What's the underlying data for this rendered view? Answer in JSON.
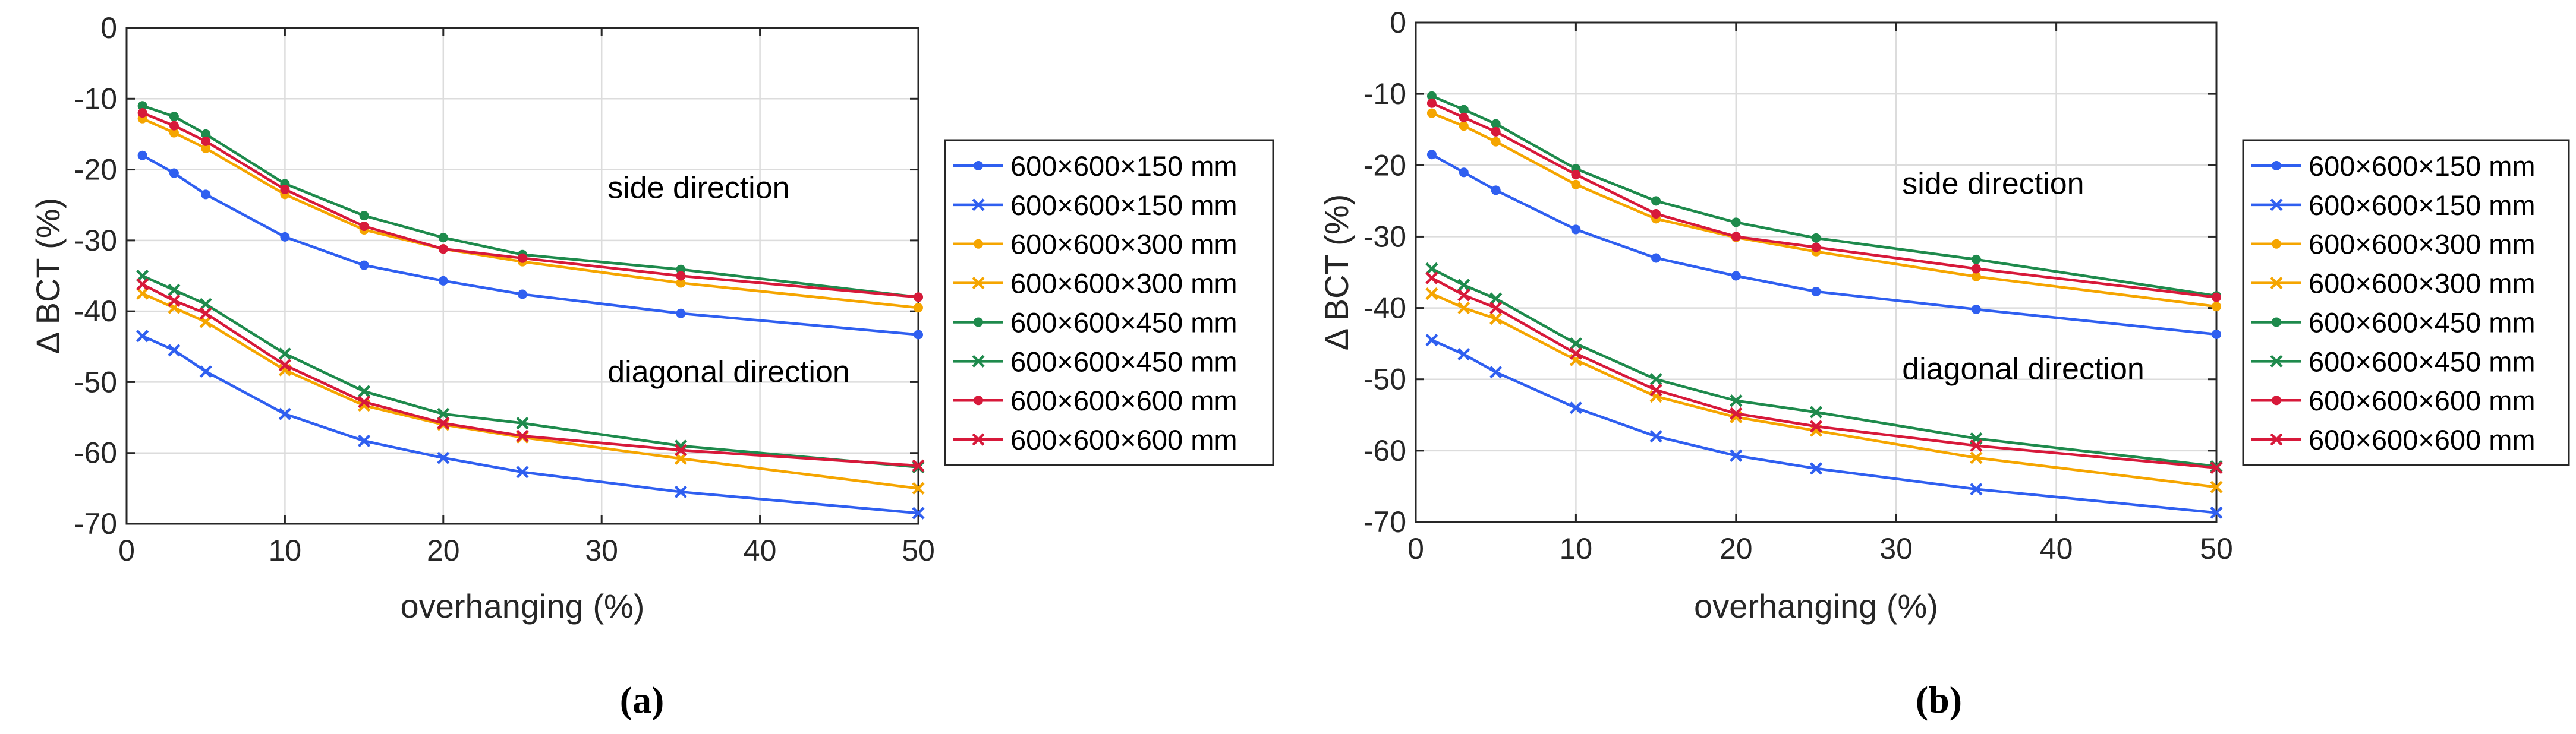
{
  "colors": {
    "blue": "#2f5ff0",
    "orange": "#f5a500",
    "green": "#1e8a4c",
    "red": "#d7193a",
    "grid": "#dcdcdc",
    "axis": "#262626"
  },
  "chart_data": [
    {
      "panel": "a",
      "caption": "(a)",
      "type": "line",
      "xlabel": "overhanging (%)",
      "ylabel": "Δ BCT (%)",
      "xlim": [
        0,
        50
      ],
      "ylim": [
        -70,
        0
      ],
      "xticks": [
        "0",
        "10",
        "20",
        "30",
        "40",
        "50"
      ],
      "yticks": [
        "0",
        "-10",
        "-20",
        "-30",
        "-40",
        "-50",
        "-60",
        "-70"
      ],
      "grid": true,
      "legend_position": "outside-right",
      "annotations": [
        {
          "text": "side direction",
          "x": 30,
          "y": -24
        },
        {
          "text": "diagonal direction",
          "x": 30,
          "y": -50
        }
      ],
      "x": [
        1,
        3,
        5,
        10,
        15,
        20,
        25,
        35,
        50
      ],
      "series": [
        {
          "name": "600×600×150 mm",
          "color": "blue",
          "marker": "dot",
          "values": [
            -18,
            -20.5,
            -23.5,
            -29.5,
            -33.5,
            -35.7,
            -37.6,
            -40.3,
            -43.3
          ]
        },
        {
          "name": "600×600×150 mm",
          "color": "blue",
          "marker": "x",
          "values": [
            -43.5,
            -45.5,
            -48.5,
            -54.5,
            -58.3,
            -60.7,
            -62.7,
            -65.5,
            -68.5
          ]
        },
        {
          "name": "600×600×300 mm",
          "color": "orange",
          "marker": "dot",
          "values": [
            -12.8,
            -14.8,
            -17,
            -23.5,
            -28.5,
            -31.2,
            -33,
            -36,
            -39.5
          ]
        },
        {
          "name": "600×600×300 mm",
          "color": "orange",
          "marker": "x",
          "values": [
            -37.5,
            -39.5,
            -41.5,
            -48.3,
            -53.3,
            -56,
            -57.8,
            -60.8,
            -65
          ]
        },
        {
          "name": "600×600×450 mm",
          "color": "green",
          "marker": "dot",
          "values": [
            -11,
            -12.5,
            -15,
            -22,
            -26.5,
            -29.6,
            -32,
            -34.1,
            -38
          ]
        },
        {
          "name": "600×600×450 mm",
          "color": "green",
          "marker": "x",
          "values": [
            -35,
            -37,
            -39,
            -46,
            -51.3,
            -54.5,
            -55.8,
            -59,
            -62
          ]
        },
        {
          "name": "600×600×600 mm",
          "color": "red",
          "marker": "dot",
          "values": [
            -12,
            -13.8,
            -16,
            -22.8,
            -28,
            -31.2,
            -32.5,
            -35,
            -38
          ]
        },
        {
          "name": "600×600×600 mm",
          "color": "red",
          "marker": "x",
          "values": [
            -36.2,
            -38.5,
            -40.3,
            -47.6,
            -52.8,
            -55.8,
            -57.6,
            -59.6,
            -61.8
          ]
        }
      ]
    },
    {
      "panel": "b",
      "caption": "(b)",
      "type": "line",
      "xlabel": "overhanging (%)",
      "ylabel": "Δ BCT (%)",
      "xlim": [
        0,
        50
      ],
      "ylim": [
        -70,
        0
      ],
      "xticks": [
        "0",
        "10",
        "20",
        "30",
        "40",
        "50"
      ],
      "yticks": [
        "0",
        "-10",
        "-20",
        "-30",
        "-40",
        "-50",
        "-60",
        "-70"
      ],
      "grid": true,
      "legend_position": "outside-right",
      "annotations": [
        {
          "text": "side direction",
          "x": 30,
          "y": -24
        },
        {
          "text": "diagonal direction",
          "x": 30,
          "y": -50
        }
      ],
      "x": [
        1,
        3,
        5,
        10,
        15,
        20,
        25,
        35,
        50
      ],
      "series": [
        {
          "name": "600×600×150 mm",
          "color": "blue",
          "marker": "dot",
          "values": [
            -18.5,
            -21,
            -23.5,
            -29,
            -33,
            -35.5,
            -37.7,
            -40.2,
            -43.7
          ]
        },
        {
          "name": "600×600×150 mm",
          "color": "blue",
          "marker": "x",
          "values": [
            -44.5,
            -46.5,
            -49,
            -54,
            -58,
            -60.7,
            -62.5,
            -65.4,
            -68.7
          ]
        },
        {
          "name": "600×600×300 mm",
          "color": "orange",
          "marker": "dot",
          "values": [
            -12.7,
            -14.5,
            -16.7,
            -22.7,
            -27.5,
            -30.1,
            -32.1,
            -35.6,
            -39.8
          ]
        },
        {
          "name": "600×600×300 mm",
          "color": "orange",
          "marker": "x",
          "values": [
            -38,
            -40,
            -41.5,
            -47.3,
            -52.4,
            -55.3,
            -57.2,
            -61,
            -65.1
          ]
        },
        {
          "name": "600×600×450 mm",
          "color": "green",
          "marker": "dot",
          "values": [
            -10.3,
            -12.2,
            -14.2,
            -20.5,
            -25,
            -28,
            -30.2,
            -33.2,
            -38.3
          ]
        },
        {
          "name": "600×600×450 mm",
          "color": "green",
          "marker": "x",
          "values": [
            -34.5,
            -36.8,
            -38.7,
            -45,
            -50,
            -53,
            -54.6,
            -58.3,
            -62.2
          ]
        },
        {
          "name": "600×600×600 mm",
          "color": "red",
          "marker": "dot",
          "values": [
            -11.3,
            -13.3,
            -15.3,
            -21.3,
            -26.8,
            -30,
            -31.5,
            -34.5,
            -38.5
          ]
        },
        {
          "name": "600×600×600 mm",
          "color": "red",
          "marker": "x",
          "values": [
            -35.8,
            -38.2,
            -40,
            -46.4,
            -51.5,
            -54.8,
            -56.6,
            -59.3,
            -62.4
          ]
        }
      ]
    }
  ]
}
